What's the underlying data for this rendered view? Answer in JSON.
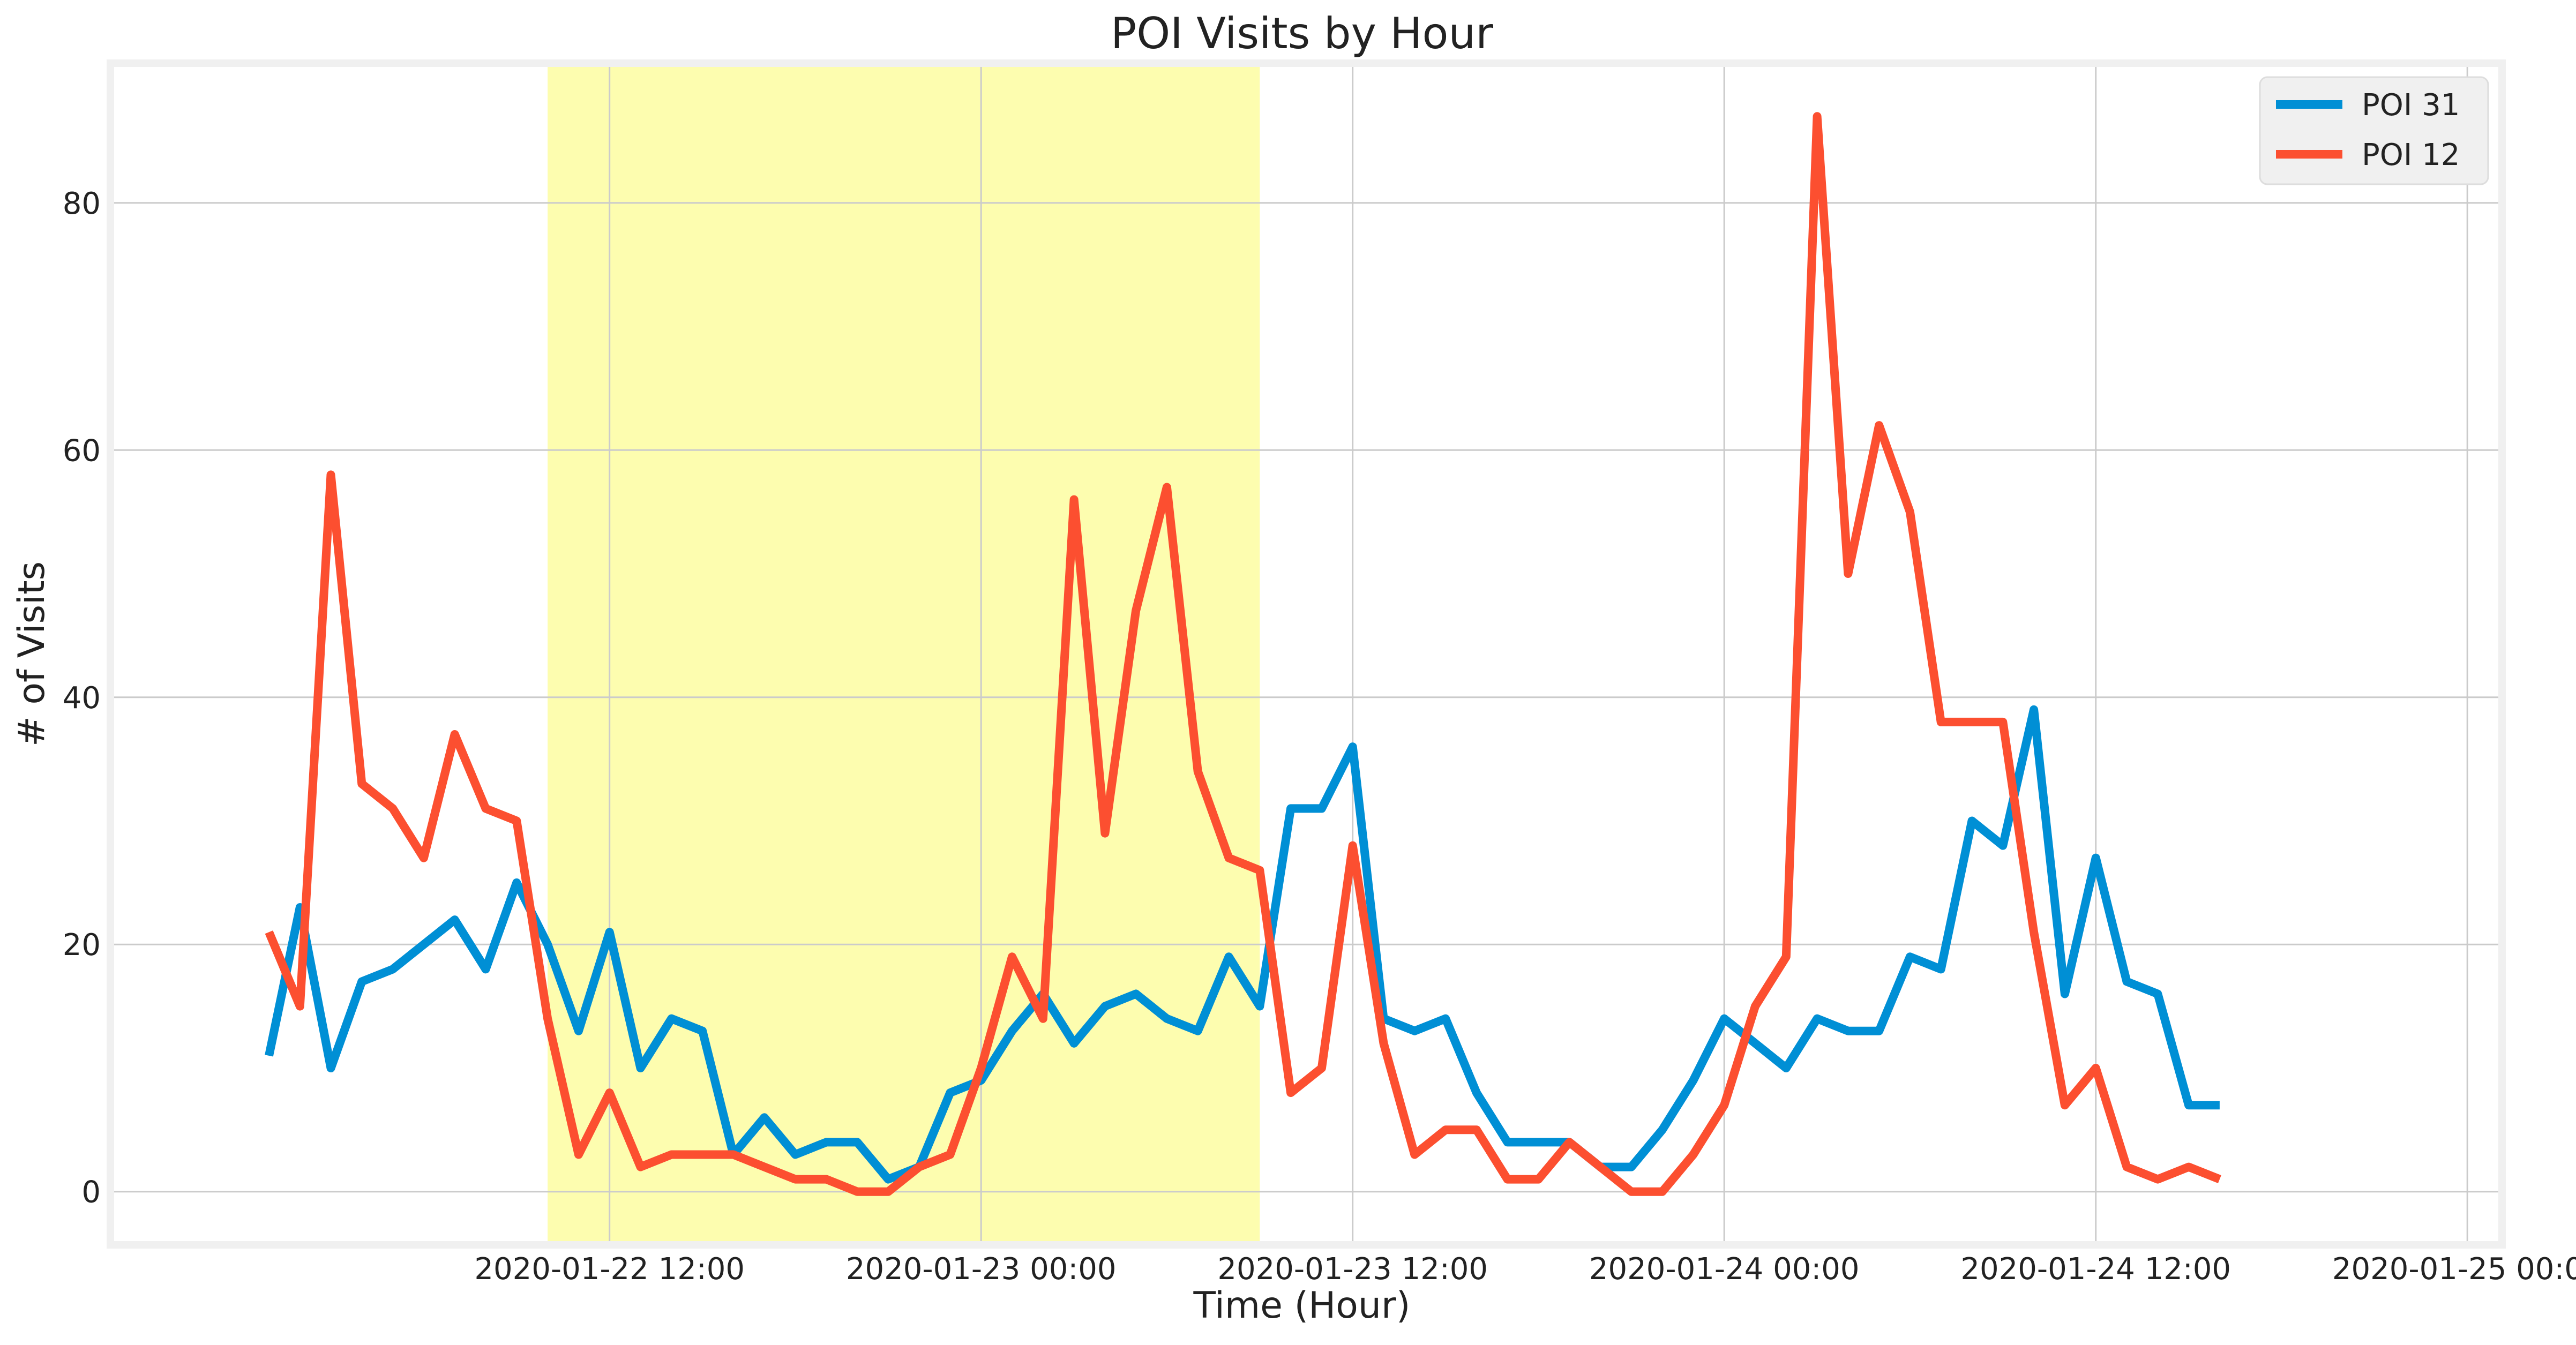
{
  "chart_data": {
    "type": "line",
    "title": "POI Visits by Hour",
    "xlabel": "Time (Hour)",
    "ylabel": "# of Visits",
    "x_start": "2020-01-22 01:00",
    "x_step_hours": 1,
    "xlim": [
      "2020-01-21 20:00",
      "2020-01-25 01:00"
    ],
    "ylim": [
      -4,
      91
    ],
    "x_ticks": [
      "2020-01-22 12:00",
      "2020-01-23 00:00",
      "2020-01-23 12:00",
      "2020-01-24 00:00",
      "2020-01-24 12:00",
      "2020-01-25 00:00"
    ],
    "y_ticks": [
      0,
      20,
      40,
      60,
      80
    ],
    "grid": true,
    "legend_position": "top-right",
    "highlight": {
      "start": "2020-01-22 10:00",
      "end": "2020-01-23 09:00",
      "color": "#fdfdaf"
    },
    "background_color": "#f0f0f0",
    "series": [
      {
        "name": "POI 31",
        "color": "#008fd5",
        "values": [
          11,
          23,
          10,
          17,
          18,
          20,
          22,
          18,
          25,
          20,
          13,
          21,
          10,
          14,
          13,
          3,
          6,
          3,
          4,
          4,
          1,
          2,
          8,
          9,
          13,
          16,
          12,
          15,
          16,
          14,
          13,
          19,
          15,
          31,
          31,
          36,
          14,
          13,
          14,
          8,
          4,
          4,
          4,
          2,
          2,
          5,
          9,
          14,
          12,
          10,
          14,
          13,
          13,
          19,
          18,
          30,
          28,
          39,
          16,
          27,
          17,
          16,
          7,
          7
        ]
      },
      {
        "name": "POI 12",
        "color": "#fc4f30",
        "values": [
          21,
          15,
          58,
          33,
          31,
          27,
          37,
          31,
          30,
          14,
          3,
          8,
          2,
          3,
          3,
          3,
          2,
          1,
          1,
          0,
          0,
          2,
          3,
          10,
          19,
          14,
          56,
          29,
          47,
          57,
          34,
          27,
          26,
          8,
          10,
          28,
          12,
          3,
          5,
          5,
          1,
          1,
          4,
          2,
          0,
          0,
          3,
          7,
          15,
          19,
          87,
          50,
          62,
          55,
          38,
          38,
          38,
          21,
          7,
          10,
          2,
          1,
          2,
          1
        ]
      }
    ]
  }
}
